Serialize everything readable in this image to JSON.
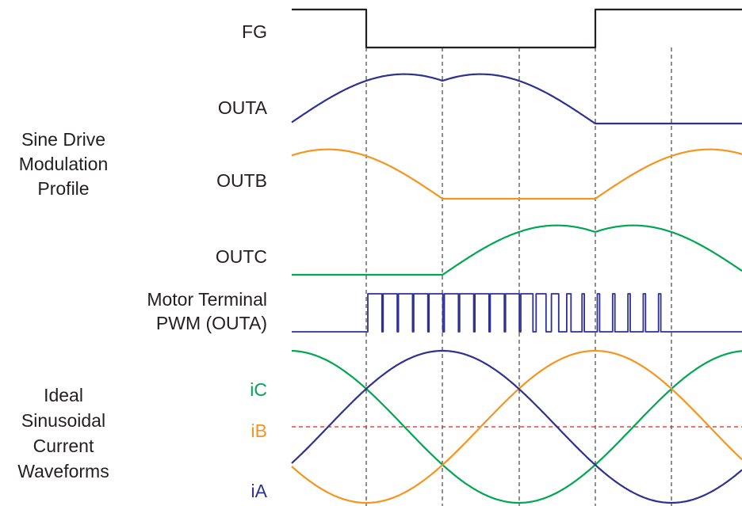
{
  "labels": {
    "fg": "FG",
    "outa": "OUTA",
    "outb": "OUTB",
    "outc": "OUTC",
    "section1": [
      "Sine Drive",
      "Modulation",
      "Profile"
    ],
    "pwm": [
      "Motor Terminal",
      "PWM (OUTA)"
    ],
    "section2": [
      "Ideal",
      "Sinusoidal",
      "Current",
      "Waveforms"
    ],
    "ic": "iC",
    "ib": "iB",
    "ia": "iA"
  },
  "colors": {
    "black": "#231f20",
    "blue": "#2e3192",
    "orange": "#f7941d",
    "green": "#00a651",
    "red": "#ed1c24"
  }
}
